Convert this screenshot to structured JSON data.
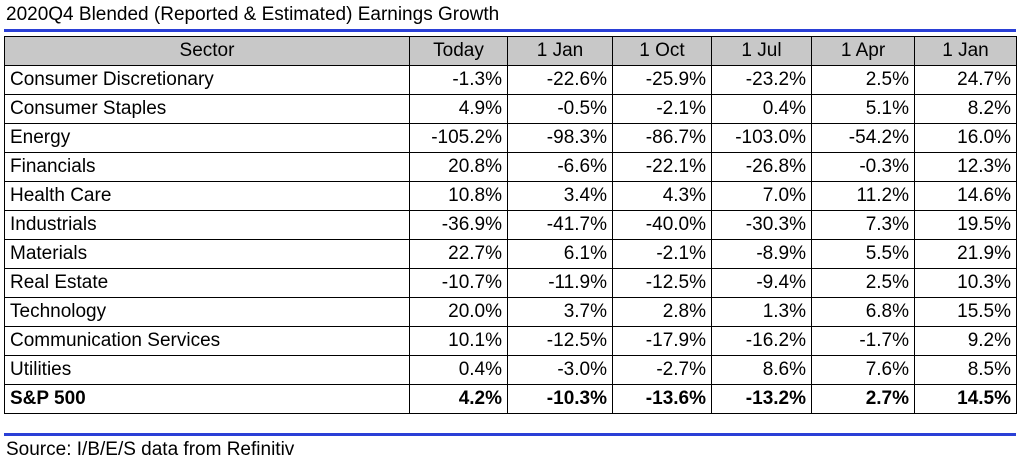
{
  "header": {
    "title": "2020Q4 Blended (Reported & Estimated) Earnings Growth"
  },
  "colors": {
    "rule": "#2a3fd6",
    "header_fill": "#c8c8c8"
  },
  "chart_data": {
    "type": "table",
    "title": "2020Q4 Blended (Reported & Estimated) Earnings Growth",
    "columns": [
      "Sector",
      "Today",
      "1 Jan",
      "1 Oct",
      "1 Jul",
      "1 Apr",
      "1 Jan"
    ],
    "rows": [
      {
        "sector": "Consumer Discretionary",
        "values": [
          "-1.3%",
          "-22.6%",
          "-25.9%",
          "-23.2%",
          "2.5%",
          "24.7%"
        ]
      },
      {
        "sector": "Consumer Staples",
        "values": [
          "4.9%",
          "-0.5%",
          "-2.1%",
          "0.4%",
          "5.1%",
          "8.2%"
        ]
      },
      {
        "sector": "Energy",
        "values": [
          "-105.2%",
          "-98.3%",
          "-86.7%",
          "-103.0%",
          "-54.2%",
          "16.0%"
        ]
      },
      {
        "sector": "Financials",
        "values": [
          "20.8%",
          "-6.6%",
          "-22.1%",
          "-26.8%",
          "-0.3%",
          "12.3%"
        ]
      },
      {
        "sector": "Health Care",
        "values": [
          "10.8%",
          "3.4%",
          "4.3%",
          "7.0%",
          "11.2%",
          "14.6%"
        ]
      },
      {
        "sector": "Industrials",
        "values": [
          "-36.9%",
          "-41.7%",
          "-40.0%",
          "-30.3%",
          "7.3%",
          "19.5%"
        ]
      },
      {
        "sector": "Materials",
        "values": [
          "22.7%",
          "6.1%",
          "-2.1%",
          "-8.9%",
          "5.5%",
          "21.9%"
        ]
      },
      {
        "sector": "Real Estate",
        "values": [
          "-10.7%",
          "-11.9%",
          "-12.5%",
          "-9.4%",
          "2.5%",
          "10.3%"
        ]
      },
      {
        "sector": "Technology",
        "values": [
          "20.0%",
          "3.7%",
          "2.8%",
          "1.3%",
          "6.8%",
          "15.5%"
        ]
      },
      {
        "sector": "Communication Services",
        "values": [
          "10.1%",
          "-12.5%",
          "-17.9%",
          "-16.2%",
          "-1.7%",
          "9.2%"
        ]
      },
      {
        "sector": "Utilities",
        "values": [
          "0.4%",
          "-3.0%",
          "-2.7%",
          "8.6%",
          "7.6%",
          "8.5%"
        ]
      }
    ],
    "total": {
      "sector": "S&P 500",
      "values": [
        "4.2%",
        "-10.3%",
        "-13.6%",
        "-13.2%",
        "2.7%",
        "14.5%"
      ]
    }
  },
  "footer": {
    "source": "Source: I/B/E/S data from Refinitiv"
  }
}
